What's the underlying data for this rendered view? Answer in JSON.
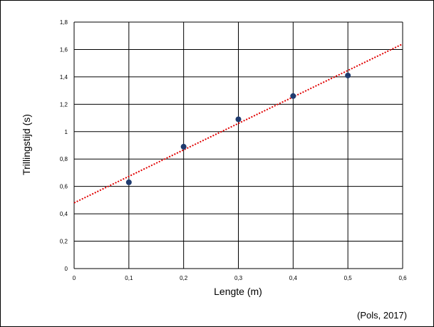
{
  "chart_data": {
    "type": "scatter",
    "xlabel": "Lengte (m)",
    "ylabel": "Trillingstijd (s)",
    "xlim": [
      0,
      0.6
    ],
    "ylim": [
      0,
      1.8
    ],
    "xticks": [
      "0",
      "0,1",
      "0,2",
      "0,3",
      "0,4",
      "0,5",
      "0,6"
    ],
    "yticks": [
      "0",
      "0,2",
      "0,4",
      "0,6",
      "0,8",
      "1",
      "1,2",
      "1,4",
      "1,6",
      "1,8"
    ],
    "series": [
      {
        "x": [
          0.1,
          0.2,
          0.3,
          0.4,
          0.5
        ],
        "y": [
          0.63,
          0.89,
          1.09,
          1.26,
          1.41
        ]
      }
    ],
    "trendline": {
      "type": "linear",
      "x": [
        0,
        0.6
      ],
      "y": [
        0.48,
        1.64
      ],
      "style": "dotted"
    },
    "grid": true,
    "marker_color": "#1f3b6f",
    "trendline_color": "#e00000"
  },
  "source_note": "(Pols, 2017)"
}
